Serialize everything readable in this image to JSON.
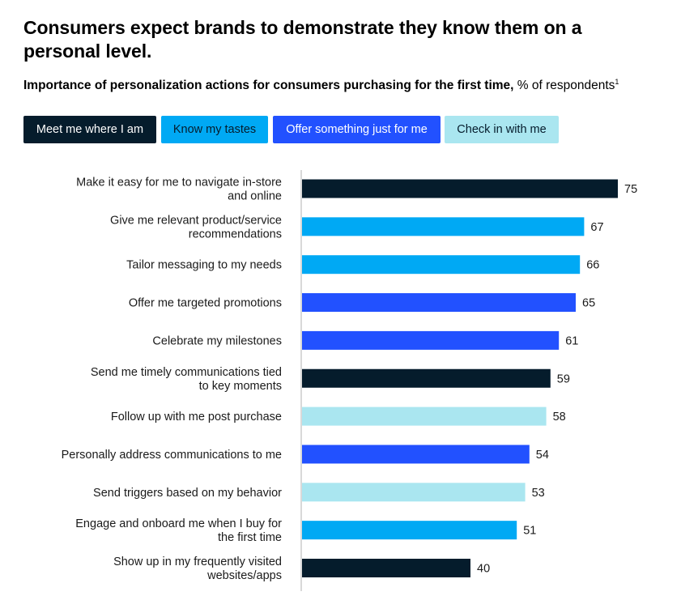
{
  "title": "Consumers expect brands to demonstrate they know them on a personal level.",
  "subtitle": {
    "bold": "Importance of personalization actions for consumers purchasing for the first time,",
    "regular": "% of respondents",
    "footnote": "1"
  },
  "legend": [
    {
      "label": "Meet me where I am",
      "color": "#051c2c",
      "text_color": "#ffffff",
      "icon": "legend-swatch"
    },
    {
      "label": "Know my tastes",
      "color": "#00a9f4",
      "text_color": "#051c2c",
      "icon": "legend-swatch"
    },
    {
      "label": "Offer something just for me",
      "color": "#2251ff",
      "text_color": "#ffffff",
      "icon": "legend-swatch"
    },
    {
      "label": "Check in with me",
      "color": "#aae6f0",
      "text_color": "#051c2c",
      "icon": "legend-swatch"
    }
  ],
  "chart_data": {
    "type": "bar",
    "orientation": "horizontal",
    "xlim": [
      0,
      75
    ],
    "grid": false,
    "legend_placement": "top",
    "categories": [
      [
        "Make it easy for me to navigate in-store",
        "and online"
      ],
      [
        "Give me relevant product/service",
        "recommendations"
      ],
      [
        "Tailor messaging to my needs"
      ],
      [
        "Offer me targeted promotions"
      ],
      [
        "Celebrate my milestones"
      ],
      [
        "Send me timely communications tied",
        "to key moments"
      ],
      [
        "Follow up with me post purchase"
      ],
      [
        "Personally address communications to me"
      ],
      [
        "Send triggers based on my behavior"
      ],
      [
        "Engage and onboard me when I buy for",
        "the first time"
      ],
      [
        "Show up in my frequently visited",
        "websites/apps"
      ]
    ],
    "values": [
      75,
      67,
      66,
      65,
      61,
      59,
      58,
      54,
      53,
      51,
      40
    ],
    "groups": [
      "Meet me where I am",
      "Know my tastes",
      "Know my tastes",
      "Offer something just for me",
      "Offer something just for me",
      "Meet me where I am",
      "Check in with me",
      "Offer something just for me",
      "Check in with me",
      "Know my tastes",
      "Meet me where I am"
    ],
    "colors": {
      "Meet me where I am": "#051c2c",
      "Know my tastes": "#00a9f4",
      "Offer something just for me": "#2251ff",
      "Check in with me": "#aae6f0"
    }
  }
}
